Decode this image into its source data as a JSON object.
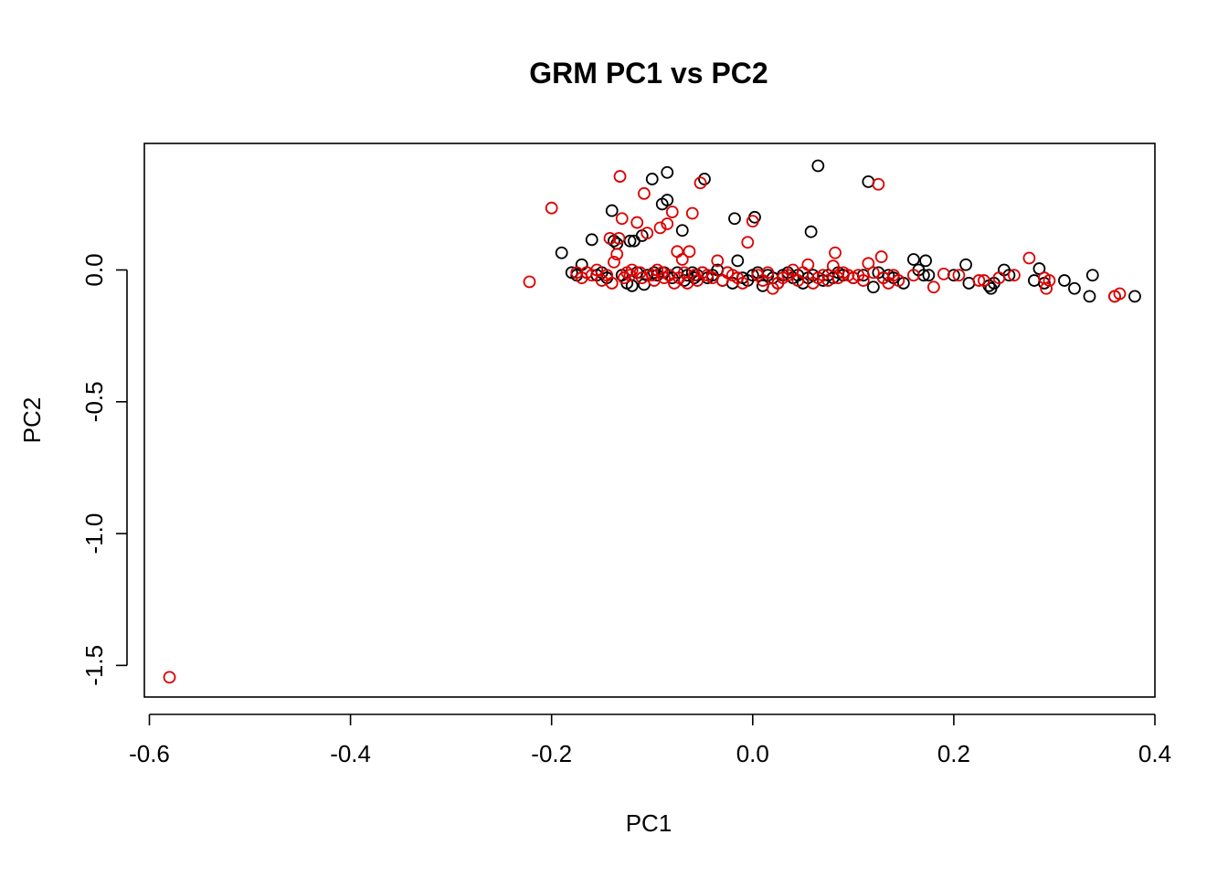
{
  "chart_data": {
    "type": "scatter",
    "title": "GRM PC1 vs PC2",
    "xlabel": "PC1",
    "ylabel": "PC2",
    "xlim": [
      -0.605,
      0.4
    ],
    "ylim": [
      -1.62,
      0.48
    ],
    "x_ticks": [
      -0.6,
      -0.4,
      -0.2,
      0.0,
      0.2,
      0.4
    ],
    "x_tick_labels": [
      "-0.6",
      "-0.4",
      "-0.2",
      "0.0",
      "0.2",
      "0.4"
    ],
    "y_ticks": [
      -1.5,
      -1.0,
      -0.5,
      0.0
    ],
    "y_tick_labels": [
      "-1.5",
      "-1.0",
      "-0.5",
      "0.0"
    ],
    "grid": false,
    "legend": "none",
    "series": [
      {
        "color": "#000000",
        "points": [
          [
            -0.19,
            0.065
          ],
          [
            -0.18,
            -0.01
          ],
          [
            -0.175,
            -0.02
          ],
          [
            -0.17,
            0.02
          ],
          [
            -0.165,
            -0.01
          ],
          [
            -0.16,
            0.115
          ],
          [
            -0.155,
            -0.02
          ],
          [
            -0.15,
            -0.01
          ],
          [
            -0.145,
            -0.03
          ],
          [
            -0.14,
            0.225
          ],
          [
            -0.138,
            0.11
          ],
          [
            -0.135,
            0.1
          ],
          [
            -0.13,
            -0.02
          ],
          [
            -0.125,
            -0.05
          ],
          [
            -0.122,
            0.11
          ],
          [
            -0.12,
            -0.06
          ],
          [
            -0.118,
            0.11
          ],
          [
            -0.115,
            -0.01
          ],
          [
            -0.11,
            0.13
          ],
          [
            -0.108,
            -0.055
          ],
          [
            -0.105,
            -0.02
          ],
          [
            -0.1,
            0.345
          ],
          [
            -0.098,
            -0.01
          ],
          [
            -0.095,
            -0.02
          ],
          [
            -0.09,
            0.25
          ],
          [
            -0.088,
            -0.01
          ],
          [
            -0.085,
            0.37
          ],
          [
            -0.085,
            0.265
          ],
          [
            -0.08,
            -0.03
          ],
          [
            -0.075,
            -0.01
          ],
          [
            -0.07,
            0.15
          ],
          [
            -0.068,
            -0.04
          ],
          [
            -0.065,
            -0.02
          ],
          [
            -0.06,
            -0.01
          ],
          [
            -0.058,
            -0.03
          ],
          [
            -0.055,
            -0.02
          ],
          [
            -0.05,
            -0.01
          ],
          [
            -0.048,
            0.345
          ],
          [
            -0.045,
            -0.03
          ],
          [
            -0.04,
            -0.02
          ],
          [
            -0.035,
            0.0
          ],
          [
            -0.03,
            -0.04
          ],
          [
            -0.025,
            -0.01
          ],
          [
            -0.02,
            -0.05
          ],
          [
            -0.018,
            0.195
          ],
          [
            -0.015,
            0.035
          ],
          [
            -0.01,
            -0.03
          ],
          [
            -0.005,
            -0.04
          ],
          [
            0.0,
            -0.02
          ],
          [
            0.002,
            0.2
          ],
          [
            0.005,
            -0.01
          ],
          [
            0.01,
            -0.06
          ],
          [
            0.015,
            -0.02
          ],
          [
            0.02,
            -0.03
          ],
          [
            0.025,
            -0.05
          ],
          [
            0.03,
            -0.02
          ],
          [
            0.035,
            -0.01
          ],
          [
            0.04,
            -0.03
          ],
          [
            0.045,
            -0.02
          ],
          [
            0.05,
            -0.05
          ],
          [
            0.055,
            -0.03
          ],
          [
            0.058,
            0.145
          ],
          [
            0.06,
            -0.02
          ],
          [
            0.065,
            0.395
          ],
          [
            0.07,
            -0.04
          ],
          [
            0.075,
            -0.02
          ],
          [
            0.08,
            -0.03
          ],
          [
            0.085,
            -0.01
          ],
          [
            0.09,
            -0.02
          ],
          [
            0.1,
            -0.03
          ],
          [
            0.11,
            -0.02
          ],
          [
            0.115,
            0.335
          ],
          [
            0.12,
            -0.065
          ],
          [
            0.125,
            -0.01
          ],
          [
            0.13,
            -0.03
          ],
          [
            0.135,
            -0.02
          ],
          [
            0.14,
            -0.03
          ],
          [
            0.15,
            -0.05
          ],
          [
            0.16,
            0.04
          ],
          [
            0.165,
            0.0
          ],
          [
            0.17,
            -0.02
          ],
          [
            0.172,
            0.035
          ],
          [
            0.175,
            -0.02
          ],
          [
            0.2,
            -0.02
          ],
          [
            0.212,
            0.02
          ],
          [
            0.215,
            -0.05
          ],
          [
            0.235,
            -0.06
          ],
          [
            0.237,
            -0.07
          ],
          [
            0.24,
            -0.05
          ],
          [
            0.25,
            0.0
          ],
          [
            0.255,
            -0.02
          ],
          [
            0.28,
            -0.04
          ],
          [
            0.285,
            0.005
          ],
          [
            0.29,
            -0.05
          ],
          [
            0.31,
            -0.04
          ],
          [
            0.32,
            -0.07
          ],
          [
            0.335,
            -0.1
          ],
          [
            0.338,
            -0.02
          ],
          [
            0.36,
            -0.1
          ],
          [
            0.38,
            -0.1
          ]
        ]
      },
      {
        "color": "#dd0000",
        "points": [
          [
            -0.58,
            -1.545
          ],
          [
            -0.222,
            -0.045
          ],
          [
            -0.2,
            0.235
          ],
          [
            -0.175,
            -0.01
          ],
          [
            -0.17,
            -0.03
          ],
          [
            -0.165,
            -0.01
          ],
          [
            -0.16,
            -0.02
          ],
          [
            -0.155,
            0.0
          ],
          [
            -0.15,
            -0.04
          ],
          [
            -0.145,
            -0.02
          ],
          [
            -0.142,
            0.12
          ],
          [
            -0.14,
            -0.05
          ],
          [
            -0.138,
            0.03
          ],
          [
            -0.135,
            0.06
          ],
          [
            -0.133,
            0.12
          ],
          [
            -0.132,
            0.355
          ],
          [
            -0.13,
            0.195
          ],
          [
            -0.128,
            -0.03
          ],
          [
            -0.125,
            -0.01
          ],
          [
            -0.122,
            -0.02
          ],
          [
            -0.12,
            0.0
          ],
          [
            -0.115,
            0.18
          ],
          [
            -0.112,
            -0.01
          ],
          [
            -0.11,
            -0.03
          ],
          [
            -0.108,
            0.29
          ],
          [
            -0.105,
            0.14
          ],
          [
            -0.1,
            -0.02
          ],
          [
            -0.098,
            -0.04
          ],
          [
            -0.095,
            0.0
          ],
          [
            -0.092,
            0.16
          ],
          [
            -0.09,
            -0.01
          ],
          [
            -0.088,
            -0.03
          ],
          [
            -0.085,
            0.175
          ],
          [
            -0.083,
            -0.02
          ],
          [
            -0.08,
            0.22
          ],
          [
            -0.078,
            -0.05
          ],
          [
            -0.075,
            0.07
          ],
          [
            -0.073,
            -0.03
          ],
          [
            -0.07,
            0.04
          ],
          [
            -0.068,
            -0.01
          ],
          [
            -0.065,
            -0.05
          ],
          [
            -0.063,
            0.07
          ],
          [
            -0.06,
            0.215
          ],
          [
            -0.058,
            -0.02
          ],
          [
            -0.055,
            -0.04
          ],
          [
            -0.052,
            0.33
          ],
          [
            -0.05,
            -0.01
          ],
          [
            -0.045,
            -0.02
          ],
          [
            -0.04,
            -0.03
          ],
          [
            -0.035,
            0.035
          ],
          [
            -0.03,
            -0.04
          ],
          [
            -0.025,
            -0.01
          ],
          [
            -0.02,
            -0.02
          ],
          [
            -0.015,
            -0.03
          ],
          [
            -0.01,
            -0.05
          ],
          [
            -0.005,
            0.105
          ],
          [
            0.0,
            0.185
          ],
          [
            0.005,
            -0.02
          ],
          [
            0.01,
            -0.04
          ],
          [
            0.015,
            -0.01
          ],
          [
            0.02,
            -0.07
          ],
          [
            0.025,
            -0.05
          ],
          [
            0.03,
            -0.03
          ],
          [
            0.035,
            -0.02
          ],
          [
            0.04,
            0.0
          ],
          [
            0.045,
            -0.04
          ],
          [
            0.05,
            -0.01
          ],
          [
            0.055,
            0.02
          ],
          [
            0.06,
            -0.05
          ],
          [
            0.065,
            -0.03
          ],
          [
            0.07,
            -0.02
          ],
          [
            0.075,
            -0.04
          ],
          [
            0.08,
            0.015
          ],
          [
            0.082,
            0.065
          ],
          [
            0.085,
            -0.03
          ],
          [
            0.09,
            -0.01
          ],
          [
            0.095,
            -0.02
          ],
          [
            0.1,
            -0.03
          ],
          [
            0.105,
            -0.02
          ],
          [
            0.11,
            -0.04
          ],
          [
            0.115,
            0.025
          ],
          [
            0.12,
            -0.01
          ],
          [
            0.125,
            0.325
          ],
          [
            0.128,
            0.05
          ],
          [
            0.13,
            -0.03
          ],
          [
            0.135,
            -0.05
          ],
          [
            0.14,
            -0.02
          ],
          [
            0.145,
            -0.04
          ],
          [
            0.16,
            -0.02
          ],
          [
            0.18,
            -0.065
          ],
          [
            0.19,
            -0.015
          ],
          [
            0.205,
            -0.02
          ],
          [
            0.225,
            -0.04
          ],
          [
            0.23,
            -0.04
          ],
          [
            0.245,
            -0.03
          ],
          [
            0.26,
            -0.02
          ],
          [
            0.275,
            0.045
          ],
          [
            0.29,
            -0.03
          ],
          [
            0.292,
            -0.07
          ],
          [
            0.295,
            -0.04
          ],
          [
            0.36,
            -0.1
          ],
          [
            0.365,
            -0.09
          ]
        ]
      }
    ]
  }
}
